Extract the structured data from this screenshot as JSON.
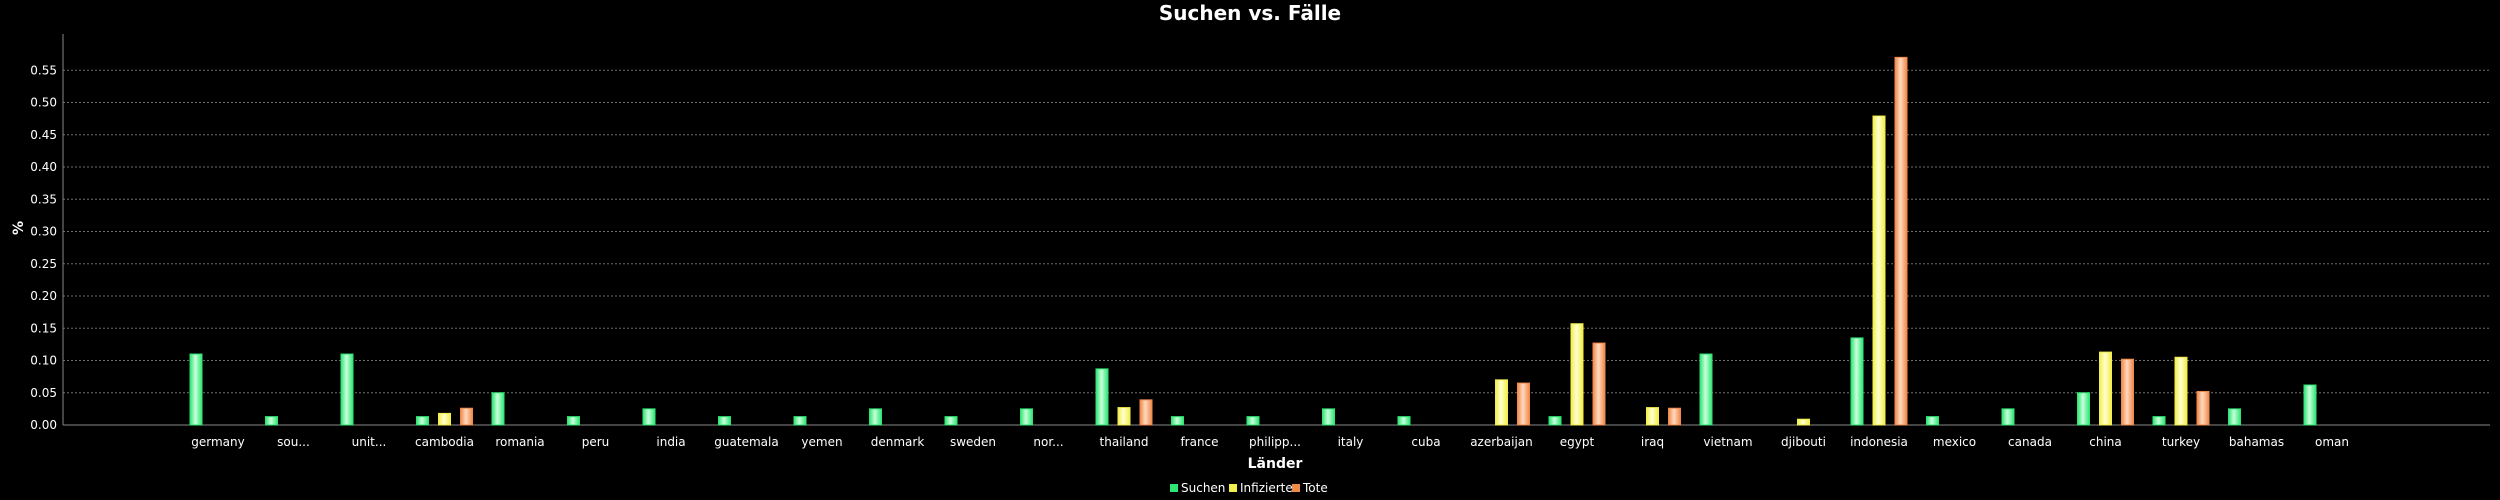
{
  "chart_data": {
    "type": "bar",
    "title": "Suchen vs. Fälle",
    "xlabel": "Länder",
    "ylabel": "%",
    "ylim": [
      0,
      0.6
    ],
    "yticks": [
      "0.00",
      "0.05",
      "0.10",
      "0.15",
      "0.20",
      "0.25",
      "0.30",
      "0.35",
      "0.40",
      "0.45",
      "0.50",
      "0.55"
    ],
    "grid": true,
    "legend_position": "bottom-center",
    "categories": [
      "germany",
      "sou...",
      "unit...",
      "cambodia",
      "romania",
      "peru",
      "india",
      "guatemala",
      "yemen",
      "denmark",
      "sweden",
      "nor...",
      "thailand",
      "france",
      "philipp...",
      "italy",
      "cuba",
      "azerbaijan",
      "egypt",
      "iraq",
      "vietnam",
      "djibouti",
      "indonesia",
      "mexico",
      "canada",
      "china",
      "turkey",
      "bahamas",
      "oman"
    ],
    "series": [
      {
        "name": "Suchen",
        "color": "#2ee673",
        "values": [
          0.11,
          0.013,
          0.11,
          0.013,
          0.05,
          0.013,
          0.025,
          0.013,
          0.013,
          0.025,
          0.013,
          0.025,
          0.087,
          0.013,
          0.013,
          0.025,
          0.013,
          null,
          0.013,
          null,
          0.11,
          null,
          0.135,
          0.013,
          0.025,
          0.05,
          0.013,
          0.025,
          0.062
        ]
      },
      {
        "name": "Infizierte",
        "color": "#f2ee4a",
        "values": [
          null,
          null,
          null,
          0.018,
          null,
          null,
          null,
          null,
          null,
          null,
          null,
          null,
          0.027,
          null,
          null,
          null,
          null,
          0.07,
          0.157,
          0.027,
          null,
          0.009,
          0.479,
          null,
          null,
          0.113,
          0.105,
          null,
          null
        ]
      },
      {
        "name": "Tote",
        "color": "#f0894a",
        "values": [
          null,
          null,
          null,
          0.026,
          null,
          null,
          null,
          null,
          null,
          null,
          null,
          null,
          0.039,
          null,
          null,
          null,
          null,
          0.065,
          0.127,
          0.026,
          null,
          null,
          0.57,
          null,
          null,
          0.102,
          0.052,
          null,
          null
        ]
      }
    ]
  }
}
